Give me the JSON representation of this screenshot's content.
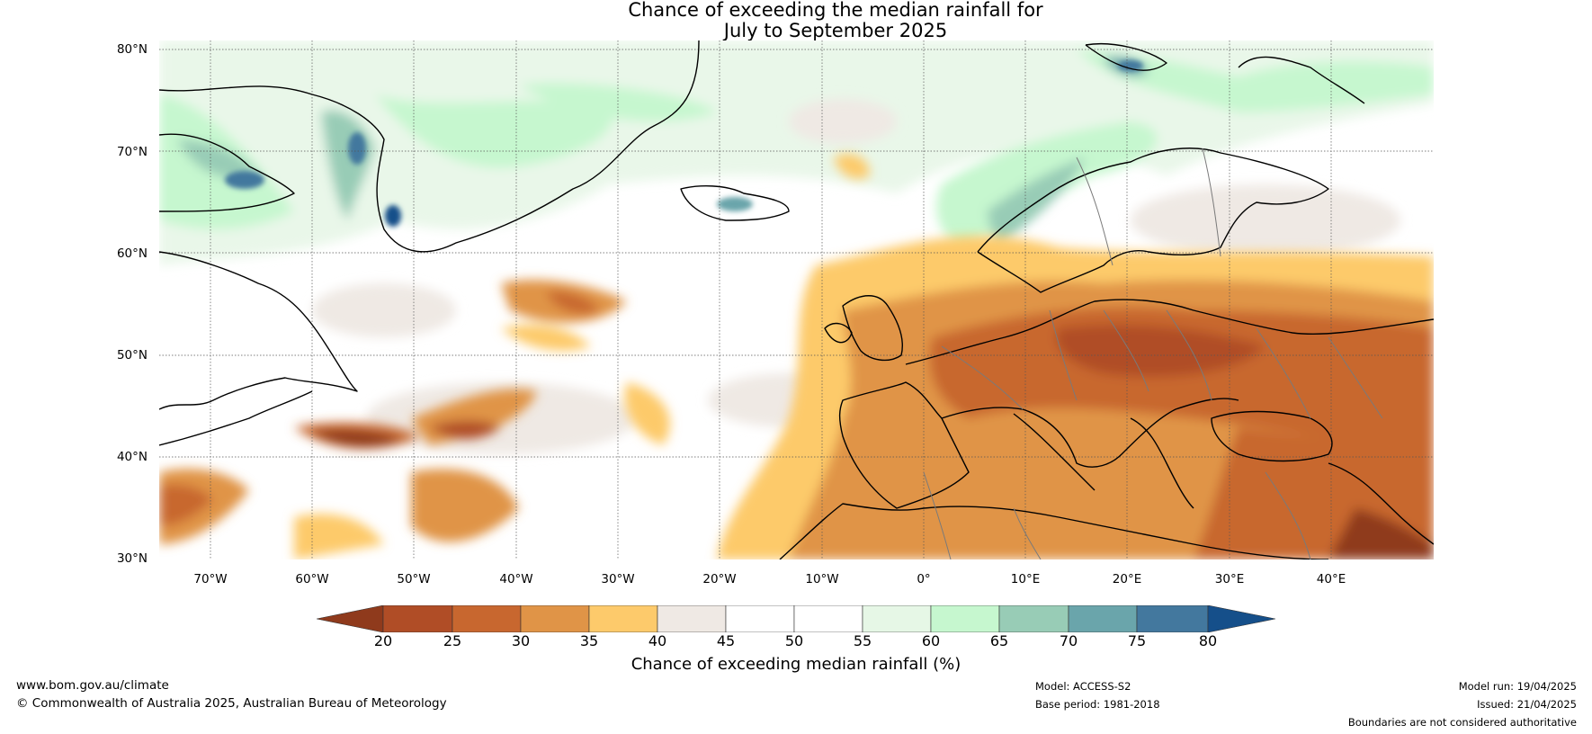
{
  "title_line1": "Chance of exceeding the median rainfall for",
  "title_line2": "July to September 2025",
  "lat_labels": [
    "80°N",
    "70°N",
    "60°N",
    "50°N",
    "40°N",
    "30°N"
  ],
  "lon_labels": [
    "70°W",
    "60°W",
    "50°W",
    "40°W",
    "30°W",
    "20°W",
    "10°W",
    "0°",
    "10°E",
    "20°E",
    "30°E",
    "40°E"
  ],
  "colorbar": {
    "ticks": [
      "20",
      "25",
      "30",
      "35",
      "40",
      "45",
      "50",
      "55",
      "60",
      "65",
      "70",
      "75",
      "80"
    ],
    "colors": [
      "#8f3a1c",
      "#b04d26",
      "#c8672f",
      "#e09447",
      "#fdca6b",
      "#efe9e4",
      "#ffffff",
      "#ffffff",
      "#e6f7e6",
      "#c6f7cf",
      "#98ccb6",
      "#6aa5ab",
      "#43789e",
      "#154f8a"
    ],
    "label": "Chance of exceeding median rainfall (%)"
  },
  "footer": {
    "website": "www.bom.gov.au/climate",
    "copyright": "© Commonwealth of Australia 2025, Australian Bureau of Meteorology",
    "model": "Model: ACCESS-S2",
    "base_period": "Base period: 1981-2018",
    "model_run": "Model run: 19/04/2025",
    "issued": "Issued: 21/04/2025",
    "disclaimer": "Boundaries are not considered authoritative"
  }
}
